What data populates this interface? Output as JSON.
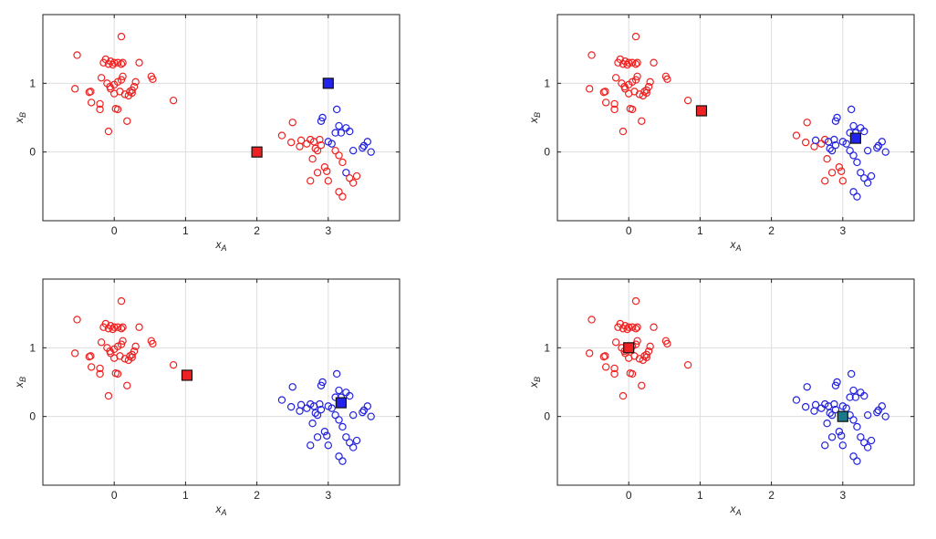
{
  "colors": {
    "cluster_a": "#ee2222",
    "cluster_b": "#2222dd",
    "center_a": "#ee2222",
    "center_b": "#2222ee",
    "center_mixed": "#1a7a8a",
    "grid": "#dedede",
    "axes": "#222222"
  },
  "chart_data": [
    {
      "type": "scatter",
      "xlabel": "x_A",
      "ylabel": "x_B",
      "xlim": [
        -1,
        4
      ],
      "ylim": [
        -1,
        2
      ],
      "xticks": [
        "0",
        "1",
        "2",
        "3"
      ],
      "yticks": [
        "0",
        "1"
      ],
      "grid": true,
      "series": [
        {
          "points": "cluster_a_assigned",
          "marker": "circle",
          "color": "#ee2222"
        },
        {
          "points": "cluster_b_assigned",
          "marker": "circle",
          "color": "#2222dd"
        }
      ],
      "centers": [
        {
          "x": 2.0,
          "y": 0.0,
          "color": "#ee2222"
        },
        {
          "x": 3.0,
          "y": 1.0,
          "color": "#2222ee"
        }
      ]
    },
    {
      "type": "scatter",
      "xlabel": "x_A",
      "ylabel": "x_B",
      "xlim": [
        -1,
        4
      ],
      "ylim": [
        -1,
        2
      ],
      "xticks": [
        "0",
        "1",
        "2",
        "3"
      ],
      "yticks": [
        "0",
        "1"
      ],
      "grid": true,
      "centers": [
        {
          "x": 1.02,
          "y": 0.6,
          "color": "#ee2222"
        },
        {
          "x": 3.18,
          "y": 0.2,
          "color": "#2222ee"
        }
      ]
    },
    {
      "type": "scatter",
      "xlabel": "x_A",
      "ylabel": "x_B",
      "xlim": [
        -1,
        4
      ],
      "ylim": [
        -1,
        2
      ],
      "xticks": [
        "0",
        "1",
        "2",
        "3"
      ],
      "yticks": [
        "0",
        "1"
      ],
      "grid": true,
      "centers": [
        {
          "x": 1.02,
          "y": 0.6,
          "color": "#ee2222"
        },
        {
          "x": 3.18,
          "y": 0.2,
          "color": "#2222ee"
        }
      ]
    },
    {
      "type": "scatter",
      "xlabel": "x_A",
      "ylabel": "x_B",
      "xlim": [
        -1,
        4
      ],
      "ylim": [
        -1,
        2
      ],
      "xticks": [
        "0",
        "1",
        "2",
        "3"
      ],
      "yticks": [
        "0",
        "1"
      ],
      "grid": true,
      "centers": [
        {
          "x": 0.0,
          "y": 1.0,
          "color": "#ee2222"
        },
        {
          "x": 3.0,
          "y": 0.0,
          "color": "#1a7a8a"
        }
      ]
    }
  ],
  "points_cluster_a": [
    [
      -0.52,
      1.41
    ],
    [
      0.1,
      1.68
    ],
    [
      -0.55,
      0.92
    ],
    [
      -0.35,
      0.87
    ],
    [
      -0.33,
      0.88
    ],
    [
      -0.32,
      0.72
    ],
    [
      -0.2,
      0.62
    ],
    [
      -0.2,
      0.7
    ],
    [
      -0.18,
      1.08
    ],
    [
      -0.15,
      1.3
    ],
    [
      -0.12,
      1.35
    ],
    [
      -0.08,
      1.28
    ],
    [
      -0.05,
      1.32
    ],
    [
      0.0,
      1.3
    ],
    [
      0.05,
      1.3
    ],
    [
      0.1,
      1.28
    ],
    [
      0.12,
      1.3
    ],
    [
      -0.1,
      1.0
    ],
    [
      -0.06,
      0.95
    ],
    [
      -0.05,
      0.92
    ],
    [
      0.0,
      0.98
    ],
    [
      0.05,
      1.02
    ],
    [
      0.1,
      1.05
    ],
    [
      0.12,
      1.1
    ],
    [
      0.08,
      0.88
    ],
    [
      0.15,
      0.84
    ],
    [
      0.2,
      0.82
    ],
    [
      0.22,
      0.88
    ],
    [
      0.25,
      0.9
    ],
    [
      0.28,
      0.95
    ],
    [
      0.3,
      1.02
    ],
    [
      0.35,
      1.3
    ],
    [
      0.52,
      1.1
    ],
    [
      0.54,
      1.06
    ],
    [
      0.02,
      0.63
    ],
    [
      0.05,
      0.62
    ],
    [
      -0.08,
      0.3
    ],
    [
      0.18,
      0.45
    ],
    [
      0.83,
      0.75
    ],
    [
      0.0,
      0.85
    ],
    [
      0.25,
      0.86
    ],
    [
      -0.02,
      1.27
    ]
  ],
  "points_cluster_b": [
    [
      2.35,
      0.24
    ],
    [
      2.5,
      0.43
    ],
    [
      2.48,
      0.14
    ],
    [
      2.6,
      0.08
    ],
    [
      2.7,
      0.12
    ],
    [
      2.62,
      0.17
    ],
    [
      2.75,
      0.18
    ],
    [
      2.8,
      0.15
    ],
    [
      2.82,
      0.05
    ],
    [
      2.85,
      0.02
    ],
    [
      2.88,
      0.18
    ],
    [
      2.9,
      0.1
    ],
    [
      2.78,
      -0.1
    ],
    [
      2.85,
      -0.3
    ],
    [
      2.95,
      -0.22
    ],
    [
      2.98,
      -0.28
    ],
    [
      3.0,
      -0.42
    ],
    [
      3.05,
      0.12
    ],
    [
      3.1,
      0.02
    ],
    [
      3.15,
      -0.05
    ],
    [
      3.2,
      -0.15
    ],
    [
      3.25,
      -0.3
    ],
    [
      3.3,
      -0.38
    ],
    [
      3.35,
      -0.45
    ],
    [
      3.4,
      -0.35
    ],
    [
      3.48,
      0.06
    ],
    [
      3.5,
      0.09
    ],
    [
      3.55,
      0.15
    ],
    [
      3.6,
      0.0
    ],
    [
      3.3,
      0.3
    ],
    [
      3.25,
      0.35
    ],
    [
      3.18,
      0.28
    ],
    [
      3.12,
      0.62
    ],
    [
      2.92,
      0.5
    ],
    [
      2.9,
      0.45
    ],
    [
      3.0,
      0.15
    ],
    [
      3.15,
      -0.58
    ],
    [
      3.2,
      -0.65
    ],
    [
      2.75,
      -0.42
    ],
    [
      3.35,
      0.02
    ],
    [
      3.1,
      0.28
    ],
    [
      3.15,
      0.38
    ]
  ],
  "panel1_red_from_b": [
    0,
    1,
    2,
    3,
    4,
    5,
    6,
    7,
    8,
    9,
    10,
    11,
    12,
    13,
    14,
    15,
    16,
    18,
    19,
    20,
    22,
    23,
    24,
    36,
    37,
    38
  ],
  "panel2_red_from_b": [
    0,
    1,
    2,
    3,
    4,
    6,
    12,
    13,
    14,
    15,
    16,
    38
  ]
}
